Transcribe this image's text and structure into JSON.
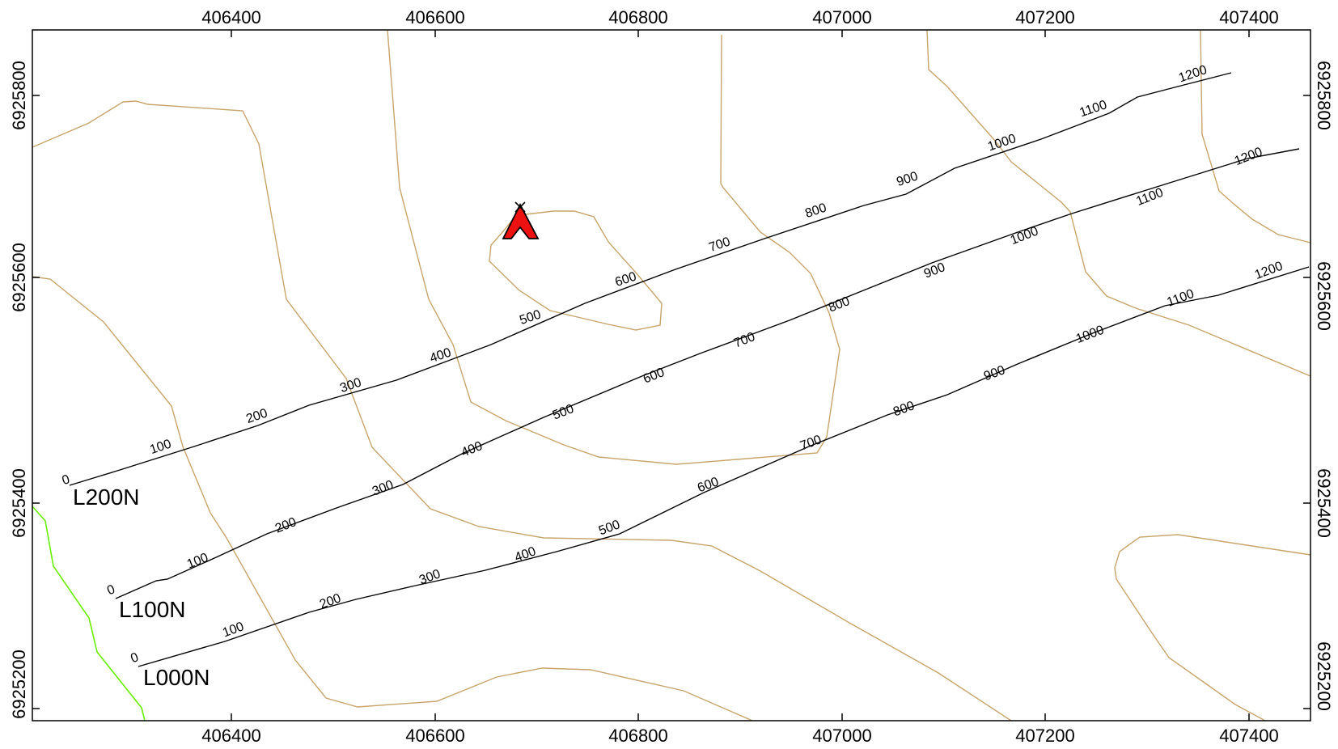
{
  "map": {
    "x_ticks": [
      "406400",
      "406600",
      "406800",
      "407000",
      "407200",
      "407400"
    ],
    "y_ticks": [
      "6925800",
      "6925600",
      "6925400",
      "6925200"
    ],
    "survey_lines": [
      {
        "name": "L200N",
        "stations": [
          "0",
          "100",
          "200",
          "300",
          "400",
          "500",
          "600",
          "700",
          "800",
          "900",
          "1000",
          "1100",
          "1200"
        ]
      },
      {
        "name": "L100N",
        "stations": [
          "0",
          "100",
          "200",
          "300",
          "400",
          "500",
          "600",
          "700",
          "800",
          "900",
          "1000",
          "1100",
          "1200"
        ]
      },
      {
        "name": "L000N",
        "stations": [
          "0",
          "100",
          "200",
          "300",
          "400",
          "500",
          "600",
          "700",
          "800",
          "900",
          "1000",
          "1100",
          "1200"
        ]
      }
    ],
    "colors": {
      "contour": "#c8a46a",
      "boundary": "#66ee00",
      "survey_line": "#000000",
      "camp_symbol": "#ee1111"
    },
    "symbols": [
      "camp-tent-icon"
    ]
  }
}
